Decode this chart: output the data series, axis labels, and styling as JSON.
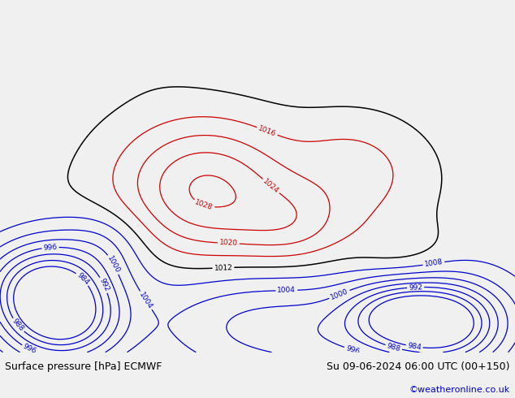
{
  "title_left": "Surface pressure [hPa] ECMWF",
  "title_right": "Su 09-06-2024 06:00 UTC (00+150)",
  "copyright": "©weatheronline.co.uk",
  "copyright_color": "#0000cc",
  "ocean_color": "#c8d4e0",
  "land_color": "#c8e8b0",
  "border_color": "#888888",
  "fig_width": 6.34,
  "fig_height": 4.9,
  "dpi": 100,
  "bottom_bar_color": "#f0f0f0",
  "text_color": "#000000",
  "font_size_labels": 9,
  "font_size_copyright": 8,
  "lon_min": 90,
  "lon_max": 195,
  "lat_min": -58,
  "lat_max": 15
}
